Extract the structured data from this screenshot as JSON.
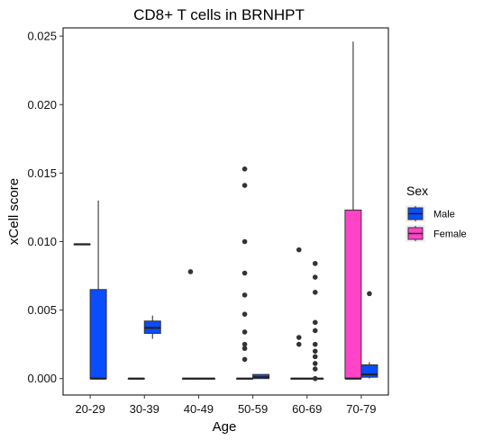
{
  "chart_data": {
    "type": "box",
    "title": "CD8+ T cells in BRNHPT",
    "xlabel": "Age",
    "ylabel": "xCell score",
    "ylim": [
      -0.0012,
      0.0256
    ],
    "yticks": [
      "0.000",
      "0.005",
      "0.010",
      "0.015",
      "0.020",
      "0.025"
    ],
    "ytick_values": [
      0,
      0.005,
      0.01,
      0.015,
      0.02,
      0.025
    ],
    "categories": [
      "20-29",
      "30-39",
      "40-49",
      "50-59",
      "60-69",
      "70-79"
    ],
    "grid": false,
    "legend": {
      "title": "Sex",
      "position": "right",
      "entries": [
        {
          "label": "Male",
          "color": "#0a4dff"
        },
        {
          "label": "Female",
          "color": "#ff44c8"
        }
      ]
    },
    "series": [
      {
        "name": "Female",
        "color": "#ff44c8",
        "boxes": [
          {
            "category": "20-29",
            "min": 0.0098,
            "q1": 0.0098,
            "median": 0.0098,
            "q3": 0.0098,
            "max": 0.0098,
            "outliers": []
          },
          {
            "category": "30-39",
            "min": 0,
            "q1": 0,
            "median": 0,
            "q3": 0,
            "max": 0,
            "outliers": []
          },
          {
            "category": "40-49",
            "min": 0,
            "q1": 0,
            "median": 0,
            "q3": 0,
            "max": 0,
            "outliers": [
              0.0078
            ]
          },
          {
            "category": "50-59",
            "min": 0,
            "q1": 0,
            "median": 0,
            "q3": 0,
            "max": 0,
            "outliers": [
              0.0153,
              0.0141,
              0.01,
              0.0077,
              0.0061,
              0.0047,
              0.0034,
              0.0025,
              0.0022,
              0.0014
            ]
          },
          {
            "category": "60-69",
            "min": 0,
            "q1": 0,
            "median": 0,
            "q3": 0,
            "max": 0,
            "outliers": [
              0.0094,
              0.003,
              0.0025
            ]
          },
          {
            "category": "70-79",
            "min": 0,
            "q1": 0,
            "median": 0,
            "q3": 0.0123,
            "max": 0.0246,
            "outliers": []
          }
        ]
      },
      {
        "name": "Male",
        "color": "#0a4dff",
        "boxes": [
          {
            "category": "20-29",
            "min": 0,
            "q1": 0,
            "median": 0,
            "q3": 0.0065,
            "max": 0.013,
            "outliers": []
          },
          {
            "category": "30-39",
            "min": 0.0029,
            "q1": 0.0033,
            "median": 0.0037,
            "q3": 0.0042,
            "max": 0.0046,
            "outliers": []
          },
          {
            "category": "40-49",
            "min": 0,
            "q1": 0,
            "median": 0,
            "q3": 0,
            "max": 0,
            "outliers": []
          },
          {
            "category": "50-59",
            "min": 0,
            "q1": 0,
            "median": 0.0001,
            "q3": 0.0003,
            "max": 0.0003,
            "outliers": []
          },
          {
            "category": "60-69",
            "min": 0,
            "q1": 0,
            "median": 0,
            "q3": 0,
            "max": 0,
            "outliers": [
              0.0084,
              0.0074,
              0.0063,
              0.0041,
              0.0035,
              0.0025,
              0.002,
              0.0016,
              0.0011,
              0.0007,
              0
            ]
          },
          {
            "category": "70-79",
            "min": 0,
            "q1": 0.0001,
            "median": 0.0003,
            "q3": 0.001,
            "max": 0.0012,
            "outliers": [
              0.0062
            ]
          }
        ]
      }
    ]
  }
}
